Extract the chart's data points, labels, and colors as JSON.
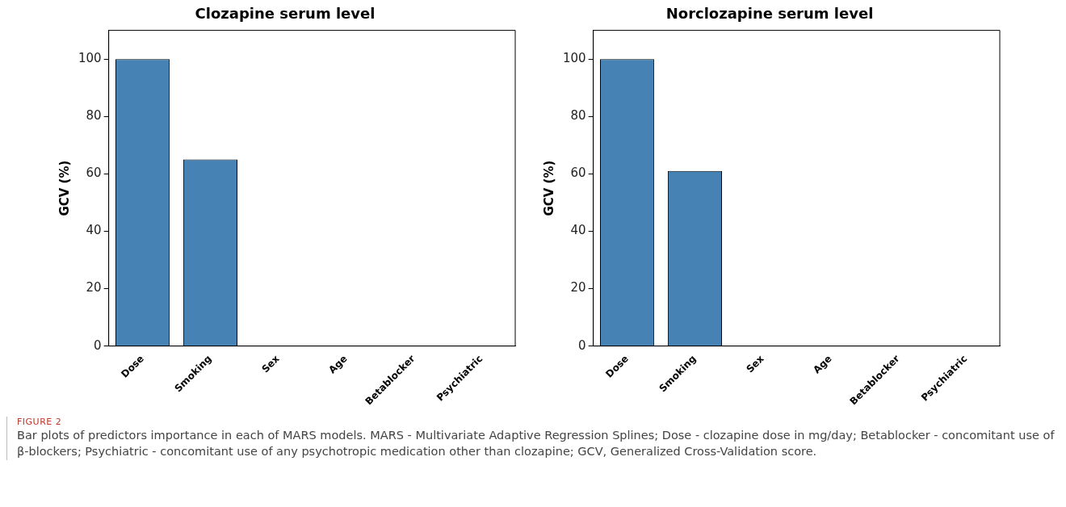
{
  "chart_data": [
    {
      "type": "bar",
      "title": "Clozapine serum level",
      "ylabel": "GCV (%)",
      "categories": [
        "Dose",
        "Smoking",
        "Sex",
        "Age",
        "Betablocker",
        "Psychiatric"
      ],
      "values": [
        100,
        65,
        0,
        0,
        0,
        0
      ],
      "color": "#4682b4",
      "ylim": [
        0,
        110
      ],
      "yticks": [
        0,
        20,
        40,
        60,
        80,
        100
      ],
      "annotations": [
        "FIGURE 2",
        "Bar plots of predictors importance in each of MARS models. MARS - Multivariate Adaptive Regression Splines; Dose - clozapine dose in mg/day; Betablocker - concomitant use of β-blockers; Psychiatric - concomitant use of any psychotropic medication other than clozapine; GCV, Generalized Cross-Validation score."
      ]
    },
    {
      "type": "bar",
      "title": "Norclozapine serum level",
      "ylabel": "GCV (%)",
      "categories": [
        "Dose",
        "Smoking",
        "Sex",
        "Age",
        "Betablocker",
        "Psychiatric"
      ],
      "values": [
        100,
        61,
        0,
        0,
        0,
        0
      ],
      "color": "#4682b4",
      "ylim": [
        0,
        110
      ],
      "yticks": [
        0,
        20,
        40,
        60,
        80,
        100
      ]
    }
  ]
}
